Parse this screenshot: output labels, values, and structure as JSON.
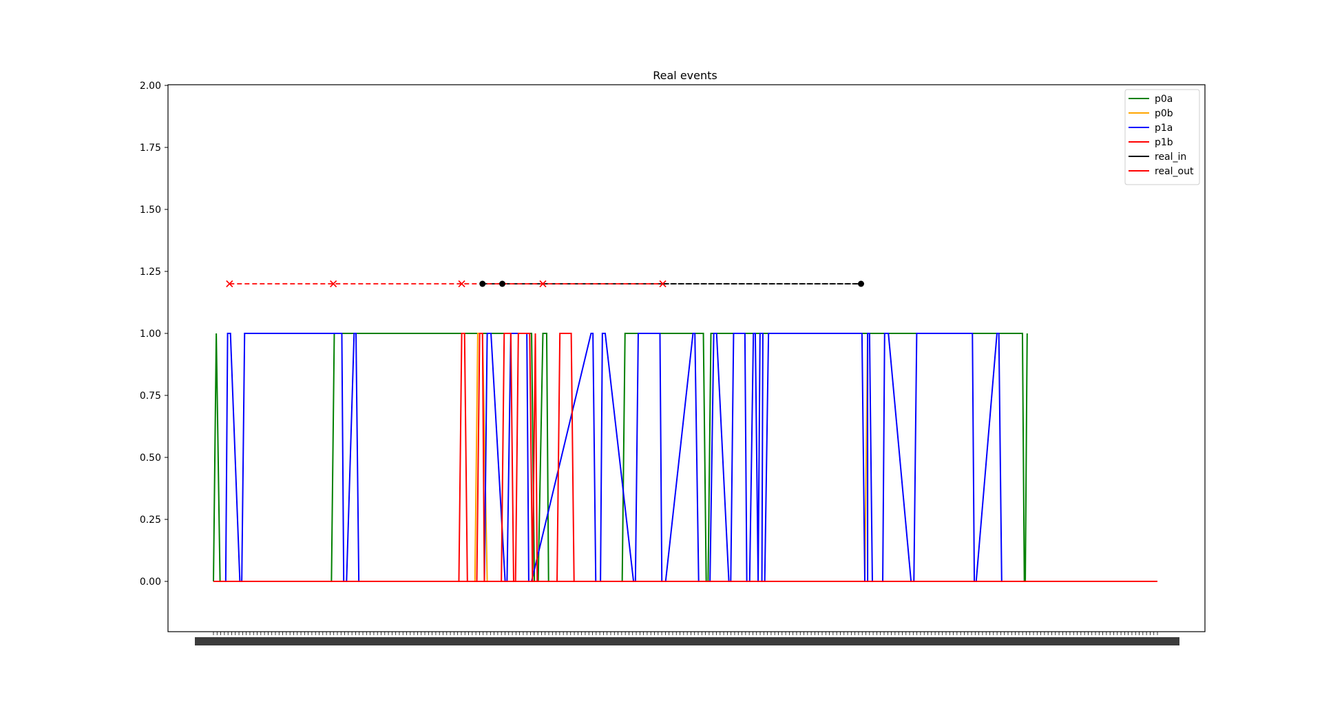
{
  "chart_data": {
    "type": "line",
    "title": "Real events",
    "xlabel": "",
    "ylabel": "",
    "xlim": [
      0,
      1000
    ],
    "ylim": [
      -0.2,
      2.0
    ],
    "y_ticks": [
      "2.00",
      "1.75",
      "1.50",
      "1.25",
      "1.00",
      "0.75",
      "0.50",
      "0.25",
      "0.00"
    ],
    "y_tick_values": [
      2.0,
      1.75,
      1.5,
      1.25,
      1.0,
      0.75,
      0.5,
      0.25,
      0.0
    ],
    "grid": false,
    "legend_position": "top-right",
    "series": [
      {
        "name": "p0a",
        "color": "#008000",
        "style": "solid",
        "x": [
          0,
          3,
          7,
          125,
          128,
          337,
          340,
          344,
          349,
          353,
          355,
          433,
          436,
          519,
          522,
          524,
          527,
          857,
          859,
          860,
          862
        ],
        "y": [
          0,
          1,
          0,
          0,
          1,
          1,
          0,
          0,
          1,
          1,
          0,
          0,
          1,
          1,
          0,
          0,
          1,
          1,
          0,
          0,
          1
        ]
      },
      {
        "name": "p0b",
        "color": "#ffa500",
        "style": "solid",
        "x": [
          0,
          277,
          280,
          285,
          290,
          690,
          693
        ],
        "y": [
          0,
          0,
          1,
          1,
          0,
          0,
          1
        ]
      },
      {
        "name": "p1a",
        "color": "#0000ff",
        "style": "solid",
        "x": [
          0,
          13,
          15,
          18,
          28,
          30,
          33,
          136,
          138,
          141,
          149,
          151,
          154,
          287,
          290,
          294,
          309,
          311,
          315,
          332,
          334,
          337,
          400,
          402,
          405,
          410,
          412,
          415,
          445,
          447,
          450,
          473,
          475,
          479,
          508,
          510,
          514,
          526,
          530,
          533,
          546,
          548,
          551,
          563,
          565,
          568,
          572,
          574,
          577,
          577,
          579,
          582,
          581,
          584,
          588,
          687,
          690,
          693,
          693,
          695,
          698,
          709,
          711,
          715,
          739,
          742,
          745,
          804,
          806,
          808,
          830,
          832,
          835
        ],
        "y": [
          0,
          0,
          1,
          1,
          0,
          0,
          1,
          1,
          0,
          0,
          1,
          1,
          0,
          0,
          1,
          1,
          0,
          0,
          1,
          1,
          0,
          0,
          1,
          1,
          0,
          0,
          1,
          1,
          0,
          0,
          1,
          1,
          0,
          0,
          1,
          1,
          0,
          0,
          1,
          1,
          0,
          0,
          1,
          1,
          0,
          0,
          1,
          1,
          0,
          0,
          1,
          1,
          0,
          0,
          1,
          1,
          0,
          0,
          1,
          1,
          0,
          0,
          1,
          1,
          0,
          0,
          1,
          1,
          0,
          0,
          1,
          1,
          0
        ]
      },
      {
        "name": "p1b",
        "color": "#ff0000",
        "style": "solid",
        "x": [
          0,
          260,
          263,
          266,
          269,
          279,
          282,
          285,
          287,
          305,
          308,
          315,
          318,
          320,
          323,
          335,
          338,
          338,
          341,
          341,
          343,
          364,
          367,
          379,
          382,
          400
        ],
        "y": [
          0,
          0,
          1,
          1,
          0,
          0,
          1,
          1,
          0,
          0,
          1,
          1,
          0,
          0,
          1,
          1,
          0,
          0,
          1,
          1,
          0,
          0,
          1,
          1,
          0,
          0
        ]
      },
      {
        "name": "real_in",
        "color": "#000000",
        "style": "dashed",
        "marker": "circle",
        "x": [
          285,
          306,
          686
        ],
        "y": [
          1.2,
          1.2,
          1.2
        ]
      },
      {
        "name": "real_out",
        "color": "#ff0000",
        "style": "dashed",
        "marker": "x",
        "x": [
          17,
          127,
          263,
          349,
          476
        ],
        "y": [
          1.2,
          1.2,
          1.2,
          1.2,
          1.2
        ]
      }
    ],
    "baseline": {
      "color": "#ff0000",
      "x": [
        0,
        1000
      ],
      "y": [
        0,
        0
      ]
    }
  }
}
